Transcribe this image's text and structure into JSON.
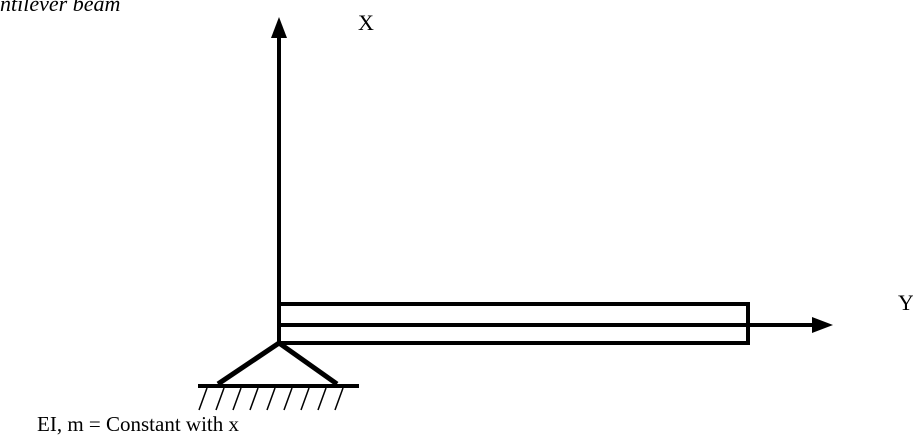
{
  "figure": {
    "caption": "ntilever beam",
    "axis_x_label": "X",
    "axis_y_label": "Y",
    "properties_note": "EI, m = Constant with x"
  },
  "style": {
    "stroke_color": "#000000",
    "background": "#ffffff"
  }
}
